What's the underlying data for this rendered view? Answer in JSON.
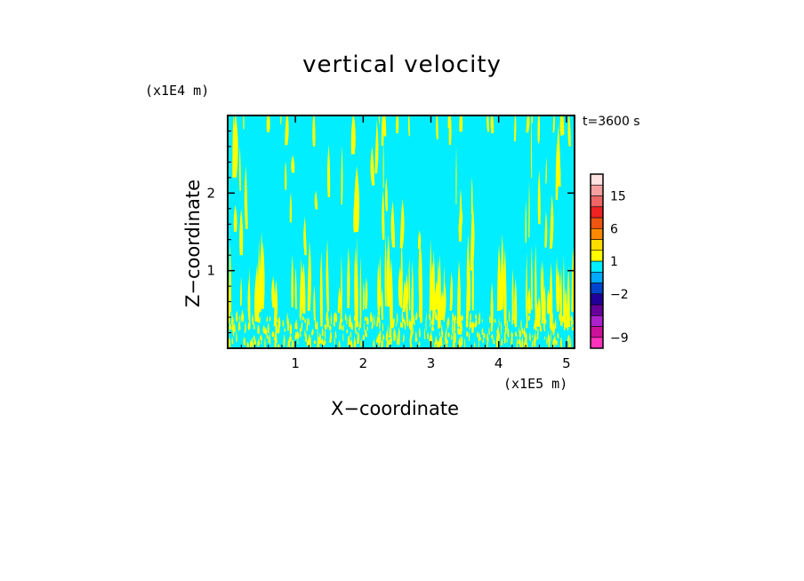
{
  "chart_data": {
    "type": "heatmap",
    "title": "vertical velocity",
    "xlabel": "X−coordinate",
    "ylabel": "Z−coordinate",
    "x_unit_label": "(x1E5 m)",
    "y_unit_label": "(x1E4 m)",
    "annotation": "t=3600 s",
    "xlim": [
      0,
      5.12
    ],
    "ylim": [
      0,
      3.0
    ],
    "x_ticks": [
      {
        "value": 1,
        "label": "1"
      },
      {
        "value": 2,
        "label": "2"
      },
      {
        "value": 3,
        "label": "3"
      },
      {
        "value": 4,
        "label": "4"
      },
      {
        "value": 5,
        "label": "5"
      }
    ],
    "y_ticks": [
      {
        "value": 1,
        "label": "1"
      },
      {
        "value": 2,
        "label": "2"
      }
    ],
    "background_level_color": "#00eeff",
    "feature_color": "#ffff00",
    "colorbar": {
      "levels": [
        -12,
        -9,
        -6,
        -4,
        -3,
        -2,
        -1,
        0,
        1,
        2,
        4,
        6,
        9,
        12,
        15,
        18,
        21
      ],
      "colors": [
        "#ff33bb",
        "#cc1199",
        "#aa22cc",
        "#660099",
        "#220099",
        "#0044cc",
        "#00aaff",
        "#00eeff",
        "#ffff00",
        "#ffdd00",
        "#ff8800",
        "#ee5511",
        "#ee2222",
        "#ee6666",
        "#f4a0a0",
        "#fde0e0"
      ],
      "labeled_values": [
        {
          "value": 15,
          "label": "15"
        },
        {
          "value": 6,
          "label": "6"
        },
        {
          "value": 1,
          "label": "1"
        },
        {
          "value": -2,
          "label": "−2"
        },
        {
          "value": -9,
          "label": "−9"
        }
      ]
    }
  }
}
